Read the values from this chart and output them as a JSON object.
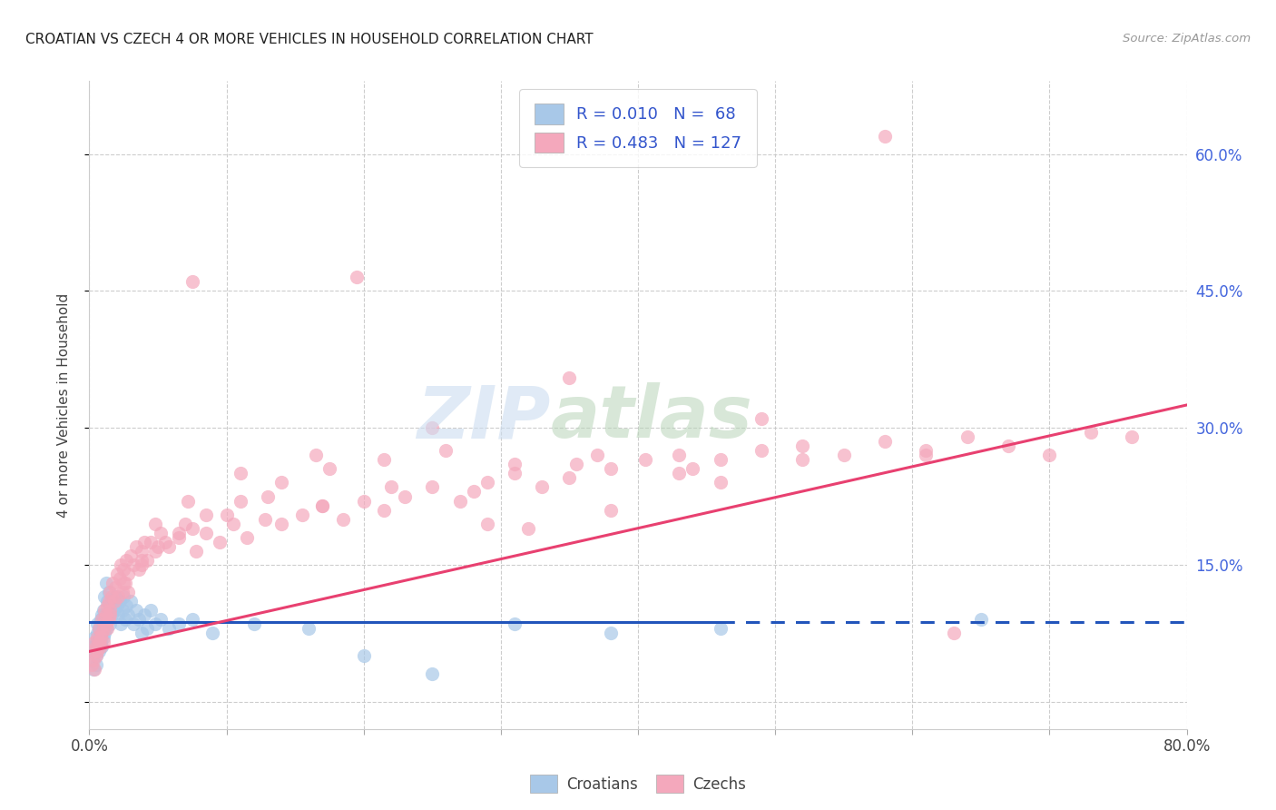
{
  "title": "CROATIAN VS CZECH 4 OR MORE VEHICLES IN HOUSEHOLD CORRELATION CHART",
  "source": "Source: ZipAtlas.com",
  "ylabel": "4 or more Vehicles in Household",
  "xlim": [
    0.0,
    0.8
  ],
  "ylim": [
    -0.03,
    0.68
  ],
  "yticks": [
    0.0,
    0.15,
    0.3,
    0.45,
    0.6
  ],
  "ytick_labels": [
    "",
    "15.0%",
    "30.0%",
    "45.0%",
    "60.0%"
  ],
  "xticks": [
    0.0,
    0.1,
    0.2,
    0.3,
    0.4,
    0.5,
    0.6,
    0.7,
    0.8
  ],
  "xtick_labels": [
    "0.0%",
    "",
    "",
    "",
    "",
    "",
    "",
    "",
    "80.0%"
  ],
  "croatian_color": "#a8c8e8",
  "czech_color": "#f4a8bc",
  "croatian_line_color": "#2255bb",
  "czech_line_color": "#e84070",
  "R_croatian": 0.01,
  "N_croatian": 68,
  "R_czech": 0.483,
  "N_czech": 127,
  "cro_line_start": 0.0,
  "cro_line_solid_end": 0.46,
  "cro_line_end": 0.8,
  "cro_line_y": 0.087,
  "czk_line_x0": 0.0,
  "czk_line_x1": 0.8,
  "czk_line_y0": 0.055,
  "czk_line_y1": 0.325,
  "croatian_points_x": [
    0.002,
    0.003,
    0.003,
    0.004,
    0.004,
    0.005,
    0.005,
    0.005,
    0.006,
    0.006,
    0.006,
    0.007,
    0.007,
    0.007,
    0.008,
    0.008,
    0.008,
    0.009,
    0.009,
    0.009,
    0.01,
    0.01,
    0.01,
    0.011,
    0.011,
    0.012,
    0.012,
    0.013,
    0.013,
    0.014,
    0.014,
    0.015,
    0.015,
    0.016,
    0.017,
    0.018,
    0.019,
    0.02,
    0.021,
    0.022,
    0.023,
    0.024,
    0.025,
    0.026,
    0.027,
    0.028,
    0.03,
    0.032,
    0.034,
    0.036,
    0.038,
    0.04,
    0.042,
    0.045,
    0.048,
    0.052,
    0.058,
    0.065,
    0.075,
    0.09,
    0.12,
    0.16,
    0.2,
    0.25,
    0.31,
    0.38,
    0.46,
    0.65
  ],
  "croatian_points_y": [
    0.045,
    0.06,
    0.035,
    0.055,
    0.07,
    0.05,
    0.065,
    0.04,
    0.06,
    0.075,
    0.085,
    0.055,
    0.07,
    0.08,
    0.065,
    0.075,
    0.09,
    0.06,
    0.08,
    0.095,
    0.07,
    0.085,
    0.1,
    0.075,
    0.115,
    0.08,
    0.13,
    0.09,
    0.11,
    0.095,
    0.12,
    0.085,
    0.105,
    0.095,
    0.11,
    0.1,
    0.115,
    0.105,
    0.095,
    0.11,
    0.085,
    0.1,
    0.115,
    0.09,
    0.105,
    0.095,
    0.11,
    0.085,
    0.1,
    0.09,
    0.075,
    0.095,
    0.08,
    0.1,
    0.085,
    0.09,
    0.08,
    0.085,
    0.09,
    0.075,
    0.085,
    0.08,
    0.05,
    0.03,
    0.085,
    0.075,
    0.08,
    0.09
  ],
  "czech_points_x": [
    0.002,
    0.003,
    0.003,
    0.004,
    0.004,
    0.005,
    0.005,
    0.006,
    0.006,
    0.007,
    0.007,
    0.008,
    0.008,
    0.009,
    0.009,
    0.01,
    0.01,
    0.011,
    0.011,
    0.012,
    0.012,
    0.013,
    0.013,
    0.014,
    0.014,
    0.015,
    0.015,
    0.016,
    0.017,
    0.018,
    0.019,
    0.02,
    0.021,
    0.022,
    0.023,
    0.024,
    0.025,
    0.026,
    0.027,
    0.028,
    0.03,
    0.032,
    0.034,
    0.036,
    0.038,
    0.04,
    0.042,
    0.045,
    0.048,
    0.052,
    0.058,
    0.065,
    0.07,
    0.078,
    0.085,
    0.095,
    0.105,
    0.115,
    0.128,
    0.14,
    0.155,
    0.17,
    0.185,
    0.2,
    0.215,
    0.23,
    0.25,
    0.27,
    0.29,
    0.31,
    0.33,
    0.355,
    0.38,
    0.405,
    0.43,
    0.46,
    0.49,
    0.52,
    0.55,
    0.58,
    0.61,
    0.64,
    0.67,
    0.7,
    0.73,
    0.76,
    0.028,
    0.038,
    0.05,
    0.065,
    0.085,
    0.11,
    0.14,
    0.175,
    0.215,
    0.26,
    0.31,
    0.37,
    0.44,
    0.52,
    0.61,
    0.015,
    0.025,
    0.038,
    0.055,
    0.075,
    0.1,
    0.13,
    0.17,
    0.22,
    0.28,
    0.35,
    0.43,
    0.29,
    0.38,
    0.46,
    0.35,
    0.25,
    0.165,
    0.11,
    0.072,
    0.048,
    0.58,
    0.63,
    0.32,
    0.195,
    0.075,
    0.49
  ],
  "czech_points_y": [
    0.04,
    0.055,
    0.045,
    0.065,
    0.035,
    0.06,
    0.05,
    0.07,
    0.055,
    0.065,
    0.08,
    0.07,
    0.06,
    0.075,
    0.09,
    0.08,
    0.065,
    0.09,
    0.1,
    0.085,
    0.095,
    0.105,
    0.08,
    0.11,
    0.09,
    0.1,
    0.12,
    0.115,
    0.13,
    0.11,
    0.125,
    0.14,
    0.115,
    0.135,
    0.15,
    0.12,
    0.145,
    0.13,
    0.155,
    0.14,
    0.16,
    0.15,
    0.17,
    0.145,
    0.165,
    0.175,
    0.155,
    0.175,
    0.165,
    0.185,
    0.17,
    0.18,
    0.195,
    0.165,
    0.185,
    0.175,
    0.195,
    0.18,
    0.2,
    0.195,
    0.205,
    0.215,
    0.2,
    0.22,
    0.21,
    0.225,
    0.235,
    0.22,
    0.24,
    0.25,
    0.235,
    0.26,
    0.255,
    0.265,
    0.27,
    0.265,
    0.275,
    0.28,
    0.27,
    0.285,
    0.275,
    0.29,
    0.28,
    0.27,
    0.295,
    0.29,
    0.12,
    0.15,
    0.17,
    0.185,
    0.205,
    0.22,
    0.24,
    0.255,
    0.265,
    0.275,
    0.26,
    0.27,
    0.255,
    0.265,
    0.27,
    0.095,
    0.13,
    0.155,
    0.175,
    0.19,
    0.205,
    0.225,
    0.215,
    0.235,
    0.23,
    0.245,
    0.25,
    0.195,
    0.21,
    0.24,
    0.355,
    0.3,
    0.27,
    0.25,
    0.22,
    0.195,
    0.62,
    0.075,
    0.19,
    0.465,
    0.46,
    0.31
  ]
}
